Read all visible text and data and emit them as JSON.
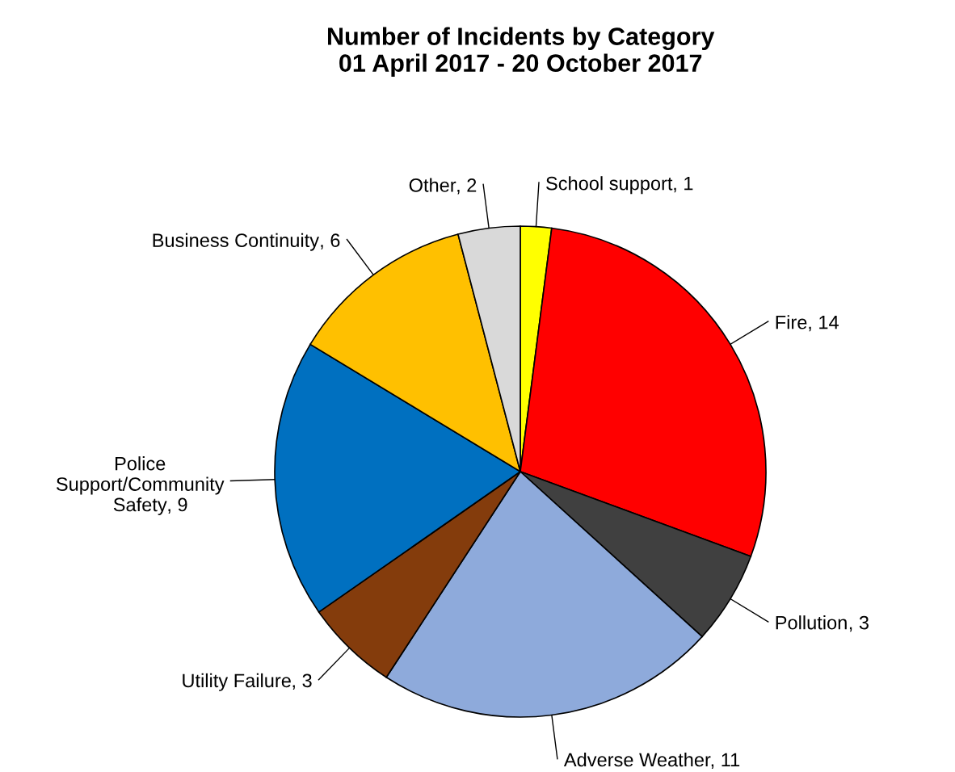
{
  "chart_data": {
    "type": "pie",
    "title": "Number of Incidents by Category\n01 April 2017 - 20 October 2017",
    "categories": [
      "School support",
      "Fire",
      "Pollution",
      "Adverse Weather",
      "Utility Failure",
      "Police Support/Community Safety",
      "Business Continuity",
      "Other"
    ],
    "values": [
      1,
      14,
      3,
      11,
      3,
      9,
      6,
      2
    ],
    "colors": [
      "#ffff00",
      "#ff0000",
      "#404040",
      "#8eaadb",
      "#843c0c",
      "#0070c0",
      "#ffc000",
      "#d9d9d9"
    ],
    "value_labels": [
      ", 1",
      ", 14",
      ", 3",
      ", 11",
      ", 3",
      ", 9",
      ", 6",
      ", 2"
    ]
  }
}
